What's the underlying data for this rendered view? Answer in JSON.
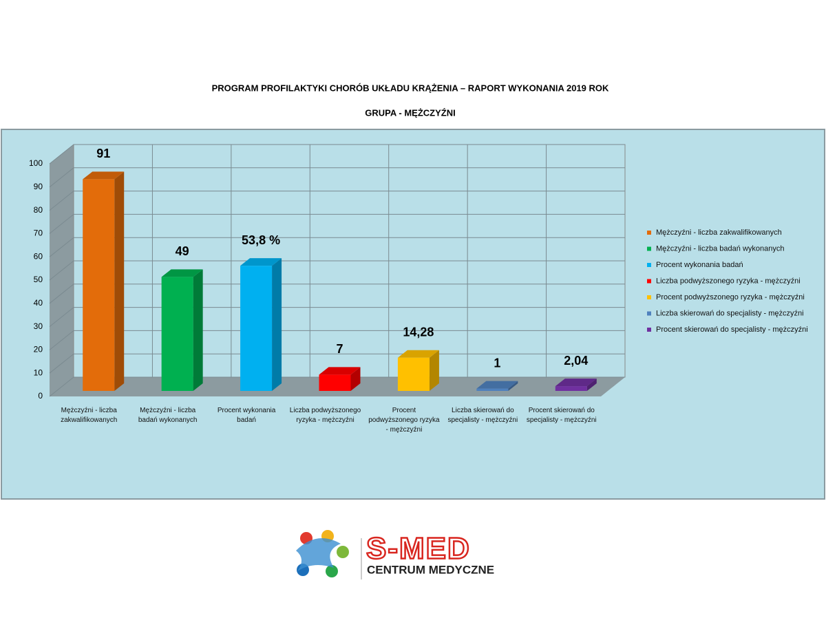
{
  "chart_data": {
    "type": "bar3d",
    "title": "PROGRAM PROFILAKTYKI CHORÓB UKŁADU KRĄŻENIA – RAPORT WYKONANIA 2019 ROK",
    "subtitle": "GRUPA  - MĘŻCZYŹNI",
    "categories": [
      "Mężczyźni - liczba zakwalifikowanych",
      "Mężczyźni - liczba badań wykonanych",
      "Procent wykonania badań",
      "Liczba podwyższonego ryzyka - mężczyźni",
      "Procent podwyższonego ryzyka - mężczyźni",
      "Liczba skierowań do specjalisty - mężczyźni",
      "Procent skierowań do specjalisty - mężczyźni"
    ],
    "values": [
      91,
      49,
      53.8,
      7,
      14.28,
      1,
      2.04
    ],
    "value_labels": [
      "91",
      "49",
      "53,8 %",
      "7",
      "14,28",
      "1",
      "2,04"
    ],
    "colors": [
      "#e36c0a",
      "#00b050",
      "#00b0f0",
      "#ff0000",
      "#ffc000",
      "#4f81bd",
      "#7030a0"
    ],
    "ylim": [
      0,
      100
    ],
    "yticks": [
      0,
      10,
      20,
      30,
      40,
      50,
      60,
      70,
      80,
      90,
      100
    ],
    "grid": true,
    "legend": "right"
  },
  "logo": {
    "name": "S-MED",
    "tagline": "CENTRUM MEDYCZNE"
  }
}
